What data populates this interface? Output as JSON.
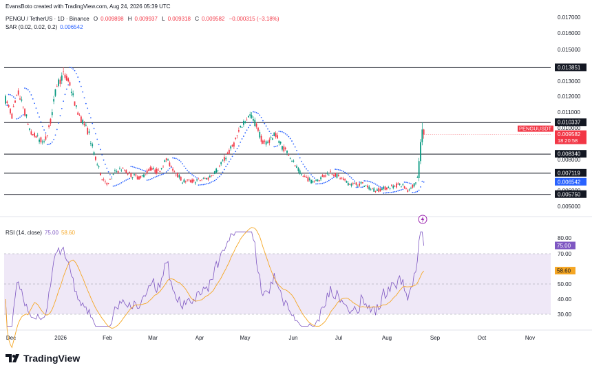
{
  "header": {
    "credit": "EvansBoto created with TradingView.com, Aug 24, 2026 05:39 UTC",
    "symbol": "PENGU / TetherUS · 1D · Binance",
    "o_label": "O",
    "o": "0.009898",
    "h_label": "H",
    "h": "0.009937",
    "l_label": "L",
    "l": "0.009318",
    "c_label": "C",
    "c": "0.009582",
    "change": "−0.000315 (−3.18%)",
    "sar_label": "SAR (0.02, 0.02, 0.2)",
    "sar_value": "0.006542",
    "rsi_label": "RSI (14, close)",
    "rsi_value": "75.00",
    "rsi_ma": "58.60"
  },
  "brand": {
    "name": "TradingView"
  },
  "colors": {
    "up": "#089981",
    "down": "#f23645",
    "sar": "#2962ff",
    "rsi": "#7e57c2",
    "rsi_ma": "#f5a623",
    "band": "#efe8f7"
  },
  "chart_data": [
    {
      "type": "candlestick",
      "title": "PENGU / TetherUS · 1D · Binance",
      "y_ticks": [
        "0.017000",
        "0.016000",
        "0.015000",
        "0.013000",
        "0.012000",
        "0.011000",
        "0.010000",
        "0.008000",
        "0.006000",
        "0.005000"
      ],
      "x_ticks": [
        "Dec",
        "2026",
        "Feb",
        "Mar",
        "Apr",
        "May",
        "Jun",
        "Jul",
        "Aug",
        "Sep",
        "Oct",
        "Nov"
      ],
      "ylim": [
        0.005,
        0.017
      ],
      "horizontal_levels": [
        "0.013851",
        "0.010337",
        "0.008340",
        "0.007119",
        "0.005750"
      ],
      "price_labels": [
        {
          "text": "0.013851",
          "value": 0.013851,
          "style": "dark"
        },
        {
          "text": "0.010337",
          "value": 0.010337,
          "style": "dark"
        },
        {
          "text": "PENGUUSDT",
          "value": 0.009582,
          "style": "red",
          "sub": "18:20:58"
        },
        {
          "text": "0.009582",
          "value": 0.009582,
          "style": "red"
        },
        {
          "text": "0.008340",
          "value": 0.00834,
          "style": "dark"
        },
        {
          "text": "0.007119",
          "value": 0.007119,
          "style": "dark"
        },
        {
          "text": "0.006542",
          "value": 0.006542,
          "style": "blue"
        },
        {
          "text": "0.005750",
          "value": 0.00575,
          "style": "dark"
        }
      ],
      "anchors": [
        [
          0,
          0.0118
        ],
        [
          4,
          0.0108
        ],
        [
          8,
          0.0122
        ],
        [
          12,
          0.011
        ],
        [
          16,
          0.0096
        ],
        [
          20,
          0.0094
        ],
        [
          24,
          0.009
        ],
        [
          28,
          0.0104
        ],
        [
          32,
          0.0128
        ],
        [
          36,
          0.0134
        ],
        [
          40,
          0.0128
        ],
        [
          44,
          0.0112
        ],
        [
          48,
          0.0104
        ],
        [
          52,
          0.0096
        ],
        [
          56,
          0.008
        ],
        [
          60,
          0.0068
        ],
        [
          64,
          0.0064
        ],
        [
          68,
          0.0072
        ],
        [
          72,
          0.0074
        ],
        [
          78,
          0.007
        ],
        [
          84,
          0.0068
        ],
        [
          90,
          0.0074
        ],
        [
          95,
          0.0072
        ],
        [
          100,
          0.008
        ],
        [
          104,
          0.0074
        ],
        [
          110,
          0.0066
        ],
        [
          118,
          0.0066
        ],
        [
          126,
          0.0068
        ],
        [
          132,
          0.0074
        ],
        [
          136,
          0.008
        ],
        [
          142,
          0.009
        ],
        [
          148,
          0.0104
        ],
        [
          152,
          0.0108
        ],
        [
          156,
          0.0102
        ],
        [
          160,
          0.009
        ],
        [
          164,
          0.0092
        ],
        [
          168,
          0.0096
        ],
        [
          172,
          0.0088
        ],
        [
          176,
          0.0084
        ],
        [
          180,
          0.0076
        ],
        [
          184,
          0.007
        ],
        [
          190,
          0.0066
        ],
        [
          196,
          0.0068
        ],
        [
          202,
          0.0072
        ],
        [
          208,
          0.0068
        ],
        [
          214,
          0.0064
        ],
        [
          222,
          0.0064
        ],
        [
          230,
          0.006
        ],
        [
          238,
          0.0062
        ],
        [
          246,
          0.0064
        ],
        [
          250,
          0.006
        ],
        [
          254,
          0.0064
        ],
        [
          256,
          0.0068
        ],
        [
          257,
          0.0078
        ],
        [
          258,
          0.009
        ],
        [
          259,
          0.0098
        ],
        [
          260,
          0.0097
        ]
      ],
      "last": {
        "open": 0.009898,
        "high": 0.009937,
        "low": 0.009318,
        "close": 0.009582
      },
      "sar_last": 0.006542
    },
    {
      "type": "line",
      "title": "RSI (14, close)",
      "y_ticks": [
        "80.00",
        "70.00",
        "50.00",
        "40.00",
        "30.00"
      ],
      "ylim": [
        25,
        85
      ],
      "band": [
        30,
        70
      ],
      "midline": 50,
      "series": [
        {
          "name": "RSI",
          "last": 75.0
        },
        {
          "name": "MA",
          "last": 58.6
        }
      ]
    }
  ]
}
